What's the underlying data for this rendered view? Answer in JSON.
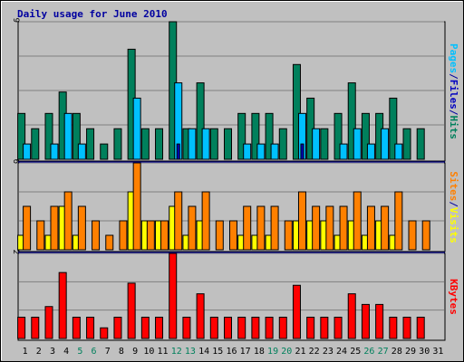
{
  "title": "Daily usage for June 2010",
  "colors": {
    "page_bg": "#ffffff",
    "frame_bg": "#c0c0c0",
    "plot_bg": "#c0c0c0",
    "grid": "#808080",
    "title": "#0000a0",
    "hits": "#00805c",
    "files": "#00c0ff",
    "pages": "#0000c0",
    "visits": "#ffff00",
    "sites": "#ff8000",
    "kbytes": "#ff0000",
    "weekday_label": "#000000",
    "weekend_label": "#00805c",
    "separator": "#0000a0"
  },
  "chart_data": [
    {
      "type": "bar",
      "panel": "top",
      "ymax_label": "9",
      "ylim": [
        0,
        9
      ],
      "grid_divisions": 4,
      "side_labels": [
        {
          "text": "Pages",
          "color": "#00c0ff"
        },
        {
          "text": "/",
          "color": "#0000a0"
        },
        {
          "text": "Files",
          "color": "#0000c0"
        },
        {
          "text": "/",
          "color": "#0000a0"
        },
        {
          "text": "Hits",
          "color": "#00805c"
        }
      ],
      "categories": [
        "1",
        "2",
        "3",
        "4",
        "5",
        "6",
        "7",
        "8",
        "9",
        "10",
        "11",
        "12",
        "13",
        "14",
        "15",
        "16",
        "17",
        "18",
        "19",
        "20",
        "21",
        "22",
        "23",
        "24",
        "25",
        "26",
        "27",
        "28",
        "29",
        "30",
        "31"
      ],
      "series": [
        {
          "name": "Hits",
          "color": "#00805c",
          "values": [
            3,
            2,
            3,
            4.4,
            3,
            2,
            1,
            2,
            7.2,
            2,
            2,
            9,
            2,
            5,
            2,
            2,
            3,
            3,
            3,
            2,
            6.2,
            4,
            2,
            3,
            5,
            3,
            3,
            4,
            2,
            2,
            0
          ]
        },
        {
          "name": "Files",
          "color": "#00c0ff",
          "values": [
            1,
            0,
            1,
            3,
            1,
            0,
            0,
            0,
            4,
            0,
            0,
            5,
            2,
            2,
            0,
            0,
            1,
            1,
            1,
            0,
            3,
            2,
            0,
            1,
            2,
            1,
            2,
            1,
            0,
            0,
            0
          ]
        },
        {
          "name": "Pages",
          "color": "#0000c0",
          "values": [
            0,
            0,
            0,
            0,
            0,
            0,
            0,
            0,
            0,
            0,
            0,
            1,
            0,
            0,
            0,
            0,
            0,
            0,
            0,
            0,
            1,
            0,
            0,
            0,
            0,
            0,
            0,
            0,
            0,
            0,
            0
          ]
        }
      ]
    },
    {
      "type": "bar",
      "panel": "middle",
      "ymax_label": "6",
      "ylim": [
        0,
        6
      ],
      "grid_divisions": 3,
      "side_labels": [
        {
          "text": "Sites",
          "color": "#ff8000"
        },
        {
          "text": "/",
          "color": "#0000a0"
        },
        {
          "text": "Visits",
          "color": "#ffff00"
        }
      ],
      "categories": [
        "1",
        "2",
        "3",
        "4",
        "5",
        "6",
        "7",
        "8",
        "9",
        "10",
        "11",
        "12",
        "13",
        "14",
        "15",
        "16",
        "17",
        "18",
        "19",
        "20",
        "21",
        "22",
        "23",
        "24",
        "25",
        "26",
        "27",
        "28",
        "29",
        "30",
        "31"
      ],
      "series": [
        {
          "name": "Visits",
          "color": "#ffff00",
          "values": [
            1,
            0,
            1,
            3,
            1,
            0,
            0,
            0,
            4,
            2,
            2,
            3,
            1,
            2,
            0,
            0,
            1,
            1,
            1,
            0,
            2,
            2,
            2,
            1,
            2,
            1,
            2,
            1,
            0,
            0,
            0
          ]
        },
        {
          "name": "Sites",
          "color": "#ff8000",
          "values": [
            3,
            2,
            3,
            4,
            3,
            2,
            1,
            2,
            6,
            2,
            2,
            4,
            3,
            4,
            2,
            2,
            3,
            3,
            3,
            2,
            4,
            3,
            3,
            3,
            4,
            3,
            3,
            4,
            2,
            2,
            0
          ]
        }
      ]
    },
    {
      "type": "bar",
      "panel": "bottom",
      "ymax_label": "2",
      "ylim": [
        0,
        2
      ],
      "grid_divisions": 3,
      "side_labels": [
        {
          "text": "KBytes",
          "color": "#ff0000"
        }
      ],
      "categories": [
        "1",
        "2",
        "3",
        "4",
        "5",
        "6",
        "7",
        "8",
        "9",
        "10",
        "11",
        "12",
        "13",
        "14",
        "15",
        "16",
        "17",
        "18",
        "19",
        "20",
        "21",
        "22",
        "23",
        "24",
        "25",
        "26",
        "27",
        "28",
        "29",
        "30",
        "31"
      ],
      "weekend_days": [
        "5",
        "6",
        "12",
        "13",
        "19",
        "20",
        "26",
        "27"
      ],
      "series": [
        {
          "name": "KBytes",
          "color": "#ff0000",
          "values": [
            0.5,
            0.5,
            0.75,
            1.55,
            0.5,
            0.5,
            0.25,
            0.5,
            1.3,
            0.5,
            0.5,
            2,
            0.5,
            1.05,
            0.5,
            0.5,
            0.5,
            0.5,
            0.5,
            0.5,
            1.25,
            0.5,
            0.5,
            0.5,
            1.05,
            0.8,
            0.8,
            0.5,
            0.5,
            0.5,
            0
          ]
        }
      ]
    }
  ]
}
